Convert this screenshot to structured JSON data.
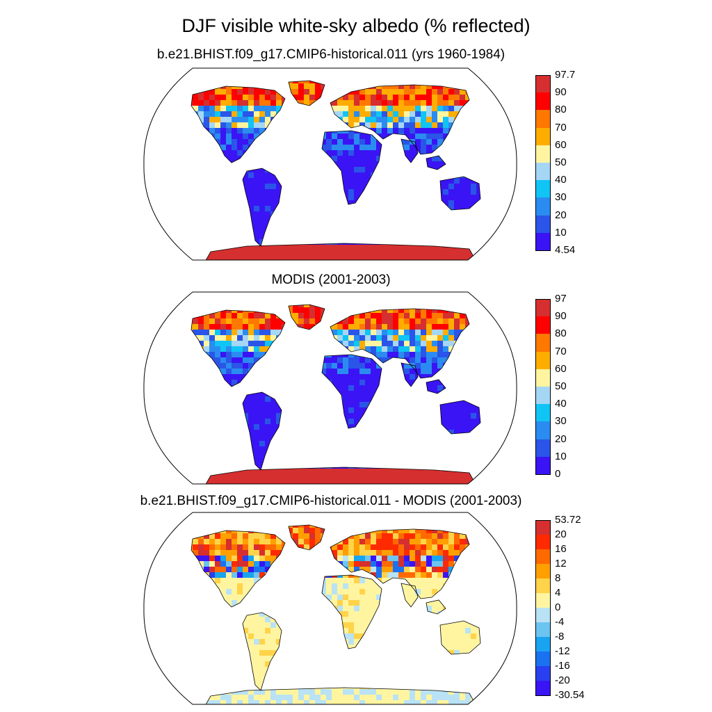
{
  "figure": {
    "title": "DJF visible white-sky albedo (% reflected)"
  },
  "panels": [
    {
      "title": "b.e21.BHIST.f09_g17.CMIP6-historical.011 (yrs 1960-1984)",
      "colorbar": {
        "labels": [
          "97.7",
          "90",
          "80",
          "70",
          "60",
          "50",
          "40",
          "30",
          "20",
          "10",
          "4.54"
        ],
        "colors": [
          "#d62f2f",
          "#ff0000",
          "#ff7800",
          "#ffad00",
          "#fff5a0",
          "#a5d6f5",
          "#10c4f5",
          "#2a8cf0",
          "#2a55e8",
          "#3a14f5"
        ]
      },
      "field": {
        "high_lat_north": "high albedo (orange/red, 70-97.7)",
        "mid_lat_north": "mixed blue/yellow (20-60)",
        "tropics_and_south": "low albedo (blue, 4.54-20)",
        "antarctica": "very high (dark red, 90-97.7)"
      }
    },
    {
      "title": "MODIS (2001-2003)",
      "colorbar": {
        "labels": [
          "97",
          "90",
          "80",
          "70",
          "60",
          "50",
          "40",
          "30",
          "20",
          "10",
          "0"
        ],
        "colors": [
          "#d62f2f",
          "#ff0000",
          "#ff7800",
          "#ffad00",
          "#fff5a0",
          "#a5d6f5",
          "#10c4f5",
          "#2a8cf0",
          "#2a55e8",
          "#3a14f5"
        ]
      },
      "field": {
        "high_lat_north": "high albedo (orange/yellow, 50-80)",
        "mid_lat_north": "mixed blue (20-50)",
        "tropics_and_south": "low albedo (blue, 0-10)",
        "antarctica": "very high (dark red, 90-97)"
      }
    },
    {
      "title": "b.e21.BHIST.f09_g17.CMIP6-historical.011 - MODIS (2001-2003)",
      "colorbar": {
        "labels": [
          "53.72",
          "20",
          "16",
          "12",
          "8",
          "4",
          "0",
          "-4",
          "-8",
          "-12",
          "-16",
          "-20",
          "-30.54"
        ],
        "colors": [
          "#d62f2f",
          "#ff2a00",
          "#ff6a00",
          "#ffa000",
          "#ffd34a",
          "#fff5a0",
          "#b9e2f5",
          "#6cc4f0",
          "#18a4f0",
          "#1a72f0",
          "#2a40f0",
          "#3a14f5"
        ]
      },
      "field": {
        "high_lat_north": "large positive difference (red, 12-53.72)",
        "mid_lat_north": "mixed positive/negative",
        "tropics_and_south": "near zero (light yellow, 0-4)",
        "antarctica": "small positive (light yellow)"
      }
    }
  ]
}
